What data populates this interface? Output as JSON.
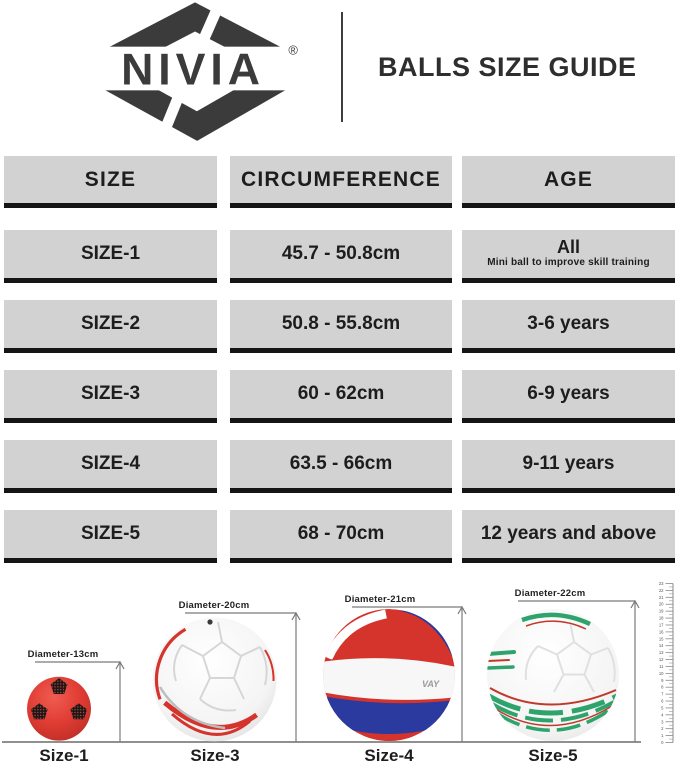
{
  "header": {
    "brand": "NIVIA",
    "registered_mark": "®",
    "title": "BALLS SIZE GUIDE"
  },
  "table": {
    "columns": [
      "SIZE",
      "CIRCUMFERENCE",
      "AGE"
    ],
    "rows": [
      {
        "size": "SIZE-1",
        "circumference": "45.7 - 50.8cm",
        "age": "All",
        "age_note": "Mini ball to improve skill training"
      },
      {
        "size": "SIZE-2",
        "circumference": "50.8 - 55.8cm",
        "age": "3-6 years"
      },
      {
        "size": "SIZE-3",
        "circumference": "60 - 62cm",
        "age": "6-9 years"
      },
      {
        "size": "SIZE-4",
        "circumference": "63.5 - 66cm",
        "age": "9-11 years"
      },
      {
        "size": "SIZE-5",
        "circumference": "68 - 70cm",
        "age": "12 years and above"
      }
    ]
  },
  "comparison": {
    "balls": [
      {
        "size_label": "Size-1",
        "diameter_label": "Diameter-13cm",
        "diameter_cm": 13
      },
      {
        "size_label": "Size-3",
        "diameter_label": "Diameter-20cm",
        "diameter_cm": 20
      },
      {
        "size_label": "Size-4",
        "diameter_label": "Diameter-21cm",
        "diameter_cm": 21,
        "ball_text": "VAY"
      },
      {
        "size_label": "Size-5",
        "diameter_label": "Diameter-22cm",
        "diameter_cm": 22
      }
    ],
    "ruler": {
      "min": 0,
      "max": 23
    }
  },
  "colors": {
    "cell_gray": "#d2d2d2",
    "row_border": "#151515",
    "logo_dark": "#3b3b3b",
    "mini_ball_red": "#e03c33",
    "football_red": "#d5342c",
    "volleyball_blue": "#2b3a9e",
    "football_green": "#2fa36c"
  }
}
